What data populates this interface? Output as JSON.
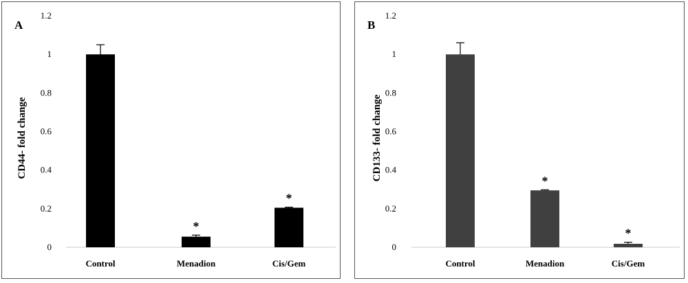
{
  "chart_data": [
    {
      "type": "bar",
      "panel_label": "A",
      "ylabel": "CD44- fold change",
      "xlabel": "",
      "categories": [
        "Control",
        "Menadion",
        "Cis/Gem"
      ],
      "values": [
        1.0,
        0.055,
        0.205
      ],
      "errors": [
        0.05,
        0.008,
        0.003
      ],
      "significance": [
        "",
        "*",
        "*"
      ],
      "ylim": [
        0,
        1.2
      ],
      "yticks": [
        "0",
        "0.2",
        "0.4",
        "0.6",
        "0.8",
        "1",
        "1.2"
      ],
      "bar_color": "#000000",
      "grid": false
    },
    {
      "type": "bar",
      "panel_label": "B",
      "ylabel": "CD133- fold change",
      "xlabel": "",
      "categories": [
        "Control",
        "Menadion",
        "Cis/Gem"
      ],
      "values": [
        1.0,
        0.295,
        0.018
      ],
      "errors": [
        0.06,
        0.003,
        0.008
      ],
      "significance": [
        "",
        "*",
        "*"
      ],
      "ylim": [
        0,
        1.2
      ],
      "yticks": [
        "0",
        "0.2",
        "0.4",
        "0.6",
        "0.8",
        "1",
        "1.2"
      ],
      "bar_color": "#404040",
      "grid": false
    }
  ]
}
